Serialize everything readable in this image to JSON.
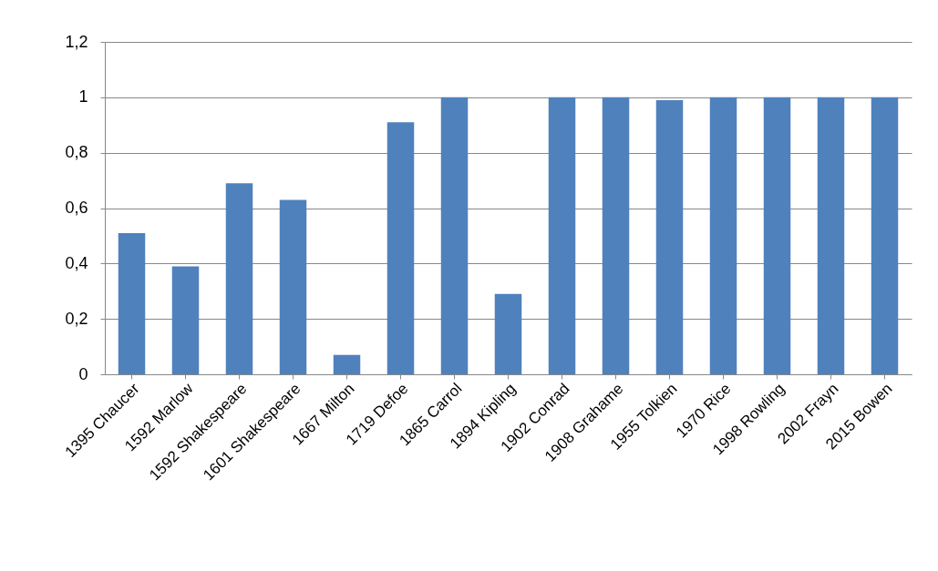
{
  "chart_data": {
    "type": "bar",
    "categories": [
      "1395 Chaucer",
      "1592 Marlow",
      "1592 Shakespeare",
      "1601 Shakespeare",
      "1667 Milton",
      "1719 Defoe",
      "1865 Carrol",
      "1894 Kipling",
      "1902 Conrad",
      "1908 Grahame",
      "1955 Tolkien",
      "1970 Rice",
      "1998 Rowling",
      "2002 Frayn",
      "2015 Bowen"
    ],
    "values": [
      0.51,
      0.39,
      0.69,
      0.63,
      0.07,
      0.91,
      1,
      0.29,
      1,
      1,
      0.99,
      1,
      1,
      1,
      1
    ],
    "color": "#4f81bd",
    "ylim": [
      0,
      1.2
    ],
    "yticks": [
      {
        "value": 0,
        "label": "0"
      },
      {
        "value": 0.2,
        "label": "0,2"
      },
      {
        "value": 0.4,
        "label": "0,4"
      },
      {
        "value": 0.6,
        "label": "0,6"
      },
      {
        "value": 0.8,
        "label": "0,8"
      },
      {
        "value": 1,
        "label": "1"
      },
      {
        "value": 1.2,
        "label": "1,2"
      }
    ],
    "grid": "y"
  }
}
